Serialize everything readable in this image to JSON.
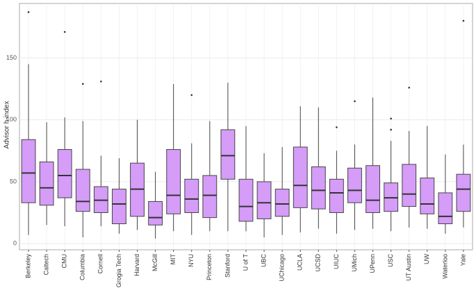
{
  "chart_data": {
    "type": "box",
    "y_label": "Advisor h-index",
    "categories": [
      "Berkeley",
      "Caltech",
      "CMU",
      "Columbia",
      "Cornell",
      "Grogia Tech",
      "Harvard",
      "McGill",
      "MIT",
      "NYU",
      "Princeton",
      "Stanford",
      "U of T",
      "UBC",
      "UChicago",
      "UCLA",
      "UCSD",
      "UIUC",
      "UMich",
      "UPenn",
      "USC",
      "UT Austin",
      "UW",
      "Waterloo",
      "Yale"
    ],
    "min": [
      7,
      15,
      14,
      5,
      14,
      8,
      11,
      4,
      10,
      7,
      10,
      10,
      10,
      5,
      7,
      9,
      12,
      8,
      11,
      12,
      10,
      13,
      12,
      8,
      13
    ],
    "q1": [
      33,
      31,
      37,
      26,
      25,
      16,
      22,
      15,
      24,
      25,
      21,
      52,
      18,
      20,
      22,
      29,
      28,
      25,
      33,
      25,
      26,
      30,
      24,
      16,
      26
    ],
    "median": [
      57,
      45,
      55,
      34,
      35,
      32,
      44,
      21,
      39,
      36,
      39,
      71,
      30,
      33,
      32,
      47,
      43,
      41,
      43,
      35,
      37,
      40,
      32,
      22,
      44
    ],
    "q3": [
      84,
      66,
      76,
      60,
      46,
      44,
      65,
      34,
      76,
      52,
      55,
      92,
      52,
      50,
      44,
      78,
      62,
      52,
      61,
      63,
      49,
      64,
      53,
      41,
      56
    ],
    "max": [
      145,
      98,
      102,
      99,
      71,
      69,
      100,
      58,
      129,
      81,
      99,
      130,
      95,
      73,
      78,
      111,
      110,
      75,
      80,
      118,
      83,
      91,
      95,
      72,
      80
    ],
    "outliers": [
      [
        187
      ],
      [],
      [
        171
      ],
      [
        129
      ],
      [
        131
      ],
      [],
      [],
      [],
      [],
      [
        120
      ],
      [],
      [],
      [],
      [],
      [],
      [],
      [],
      [
        94
      ],
      [
        115
      ],
      [],
      [
        101,
        92
      ],
      [
        126
      ],
      [],
      [],
      [
        180
      ]
    ],
    "color": "#d59cf8",
    "ylim": [
      -5,
      194
    ],
    "yticks": [
      0,
      50,
      100,
      150
    ],
    "grid": true
  }
}
